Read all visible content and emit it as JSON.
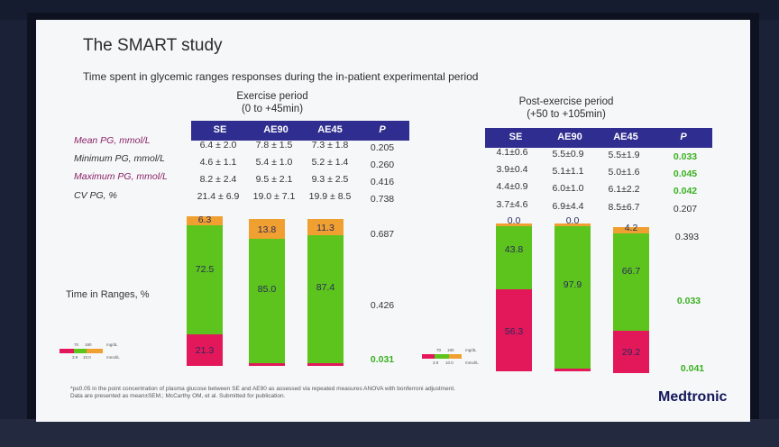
{
  "slide": {
    "title": "The SMART study",
    "subtitle": "Time spent in glycemic ranges responses during the in-patient experimental period",
    "brand": "Medtronic",
    "footnote_line1": "*p≤0.05 in the point concentration of plasma glucose between SE and AE90 as assessed via repeated measures ANOVA with bonferroni adjustment.",
    "footnote_line2": "Data are presented as mean±SEM.; McCarthy OM, et al. Submitted for publication."
  },
  "row_labels": [
    "Mean PG, mmol/L",
    "Minimum PG, mmol/L",
    "Maximum PG, mmol/L",
    "CV PG, %"
  ],
  "time_in_ranges_label": "Time in Ranges, %",
  "columns": [
    "SE",
    "AE90",
    "AE45",
    "P"
  ],
  "exercise": {
    "title_line1": "Exercise period",
    "title_line2": "(0 to +45min)",
    "rows": [
      {
        "v": [
          "6.4 ± 2.0",
          "7.8 ± 1.5",
          "7.3 ± 1.8"
        ],
        "p": "0.205"
      },
      {
        "v": [
          "4.6 ± 1.1",
          "5.4 ± 1.0",
          "5.2 ± 1.4"
        ],
        "p": "0.260"
      },
      {
        "v": [
          "8.2 ± 2.4",
          "9.5 ± 2.1",
          "9.3 ± 2.5"
        ],
        "p": "0.416"
      },
      {
        "v": [
          "21.4 ± 6.9",
          "19.0 ± 7.1",
          "19.9 ± 8.5"
        ],
        "p": "0.738"
      }
    ],
    "range_p": {
      "above": "0.687",
      "in_range": "0.426",
      "below": "0.031"
    }
  },
  "post_exercise": {
    "title_line1": "Post-exercise period",
    "title_line2": "(+50 to +105min)",
    "rows": [
      {
        "v": [
          "4.1±0.6",
          "5.5±0.9",
          "5.5±1.9"
        ],
        "p": "0.033"
      },
      {
        "v": [
          "3.9±0.4",
          "5.1±1.1",
          "5.0±1.6"
        ],
        "p": "0.045"
      },
      {
        "v": [
          "4.4±0.9",
          "6.0±1.0",
          "6.1±2.2"
        ],
        "p": "0.042"
      },
      {
        "v": [
          "3.7±4.6",
          "6.9±4.4",
          "8.5±6.7"
        ],
        "p": "0.207"
      }
    ],
    "range_p": {
      "above": "0.393",
      "in_range": "0.033",
      "below": "0.041"
    }
  },
  "legend": {
    "top_ticks": [
      "70",
      "180"
    ],
    "top_unit": "mg/dL",
    "bottom_ticks": [
      "3.9",
      "10.0"
    ],
    "bottom_unit": "mmol/L"
  },
  "colors": {
    "below": "#e3185a",
    "in_range": "#5cc41c",
    "above": "#f0a030",
    "header": "#2f2d8f",
    "sig_green": "#3ab020"
  },
  "chart_data": [
    {
      "type": "bar",
      "stacked": true,
      "categories": [
        "SE",
        "AE90",
        "AE45"
      ],
      "series": [
        {
          "values": [
            21.3,
            1.3,
            1.3
          ]
        },
        {
          "values": [
            72.5,
            85.0,
            87.4
          ]
        },
        {
          "values": [
            6.3,
            13.8,
            11.3
          ]
        }
      ]
    },
    {
      "type": "bar",
      "stacked": true,
      "categories": [
        "SE",
        "AE90",
        "AE45"
      ],
      "series": [
        {
          "values": [
            56.3,
            2.1,
            29.2
          ]
        },
        {
          "values": [
            43.8,
            97.9,
            66.7
          ]
        },
        {
          "values": [
            0.0,
            0.0,
            4.2
          ]
        }
      ]
    }
  ]
}
